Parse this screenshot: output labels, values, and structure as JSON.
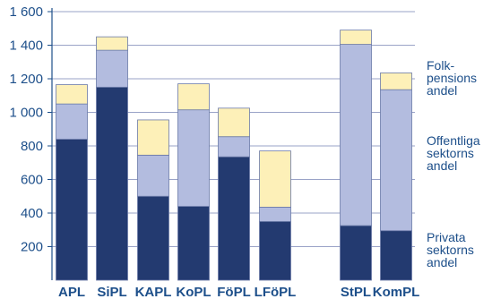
{
  "chart_data": {
    "type": "bar",
    "stacked": true,
    "title": "",
    "xlabel": "",
    "ylabel": "",
    "ylim": [
      0,
      1600
    ],
    "yticks": [
      {
        "value": 200,
        "label": "200"
      },
      {
        "value": 400,
        "label": "400"
      },
      {
        "value": 600,
        "label": "600"
      },
      {
        "value": 800,
        "label": "800"
      },
      {
        "value": 1000,
        "label": "1 000"
      },
      {
        "value": 1200,
        "label": "1 200"
      },
      {
        "value": 1400,
        "label": "1 400"
      },
      {
        "value": 1600,
        "label": "1 600"
      }
    ],
    "grid": true,
    "categories": [
      "APL",
      "SiPL",
      "KAPL",
      "KoPL",
      "FöPL",
      "LFöPL",
      "StPL",
      "KomPL"
    ],
    "series": [
      {
        "name": "Privata sektorns andel",
        "color": "#233a70",
        "values": [
          840,
          1150,
          500,
          440,
          735,
          350,
          325,
          295
        ]
      },
      {
        "name": "Offentliga sektorns andel",
        "color": "#b3bcdf",
        "values": [
          210,
          220,
          245,
          575,
          120,
          85,
          1080,
          840
        ]
      },
      {
        "name": "Folk-pensions andel",
        "color": "#fdf0b8",
        "values": [
          115,
          80,
          210,
          155,
          170,
          335,
          85,
          100
        ]
      }
    ],
    "legend": {
      "placement": "right",
      "items": [
        {
          "series": 2,
          "lines": [
            "Folk-",
            "pensions",
            "andel"
          ]
        },
        {
          "series": 1,
          "lines": [
            "Offentliga",
            "sektorns",
            "andel"
          ]
        },
        {
          "series": 0,
          "lines": [
            "Privata",
            "sektorns",
            "andel"
          ]
        }
      ]
    }
  }
}
